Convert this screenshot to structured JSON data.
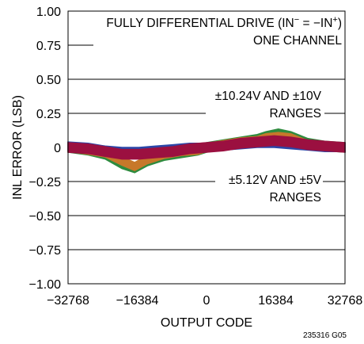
{
  "chart_data": {
    "type": "line",
    "xlabel": "OUTPUT CODE",
    "ylabel": "INL ERROR (LSB)",
    "xlim": [
      -32768,
      32768
    ],
    "ylim": [
      -1.0,
      1.0
    ],
    "x_ticks": [
      -32768,
      -16384,
      0,
      16384,
      32768
    ],
    "x_tick_labels": [
      "−32768",
      "−16384",
      "0",
      "16384",
      "32768"
    ],
    "y_ticks": [
      1.0,
      0.75,
      0.5,
      0.25,
      0,
      -0.25,
      -0.5,
      -0.75,
      -1.0
    ],
    "y_tick_labels": [
      "1.00",
      "0.75",
      "0.50",
      "0.25",
      "0",
      "−0.25",
      "−0.50",
      "−0.75",
      "−1.00"
    ],
    "grid": true,
    "annotations": {
      "condition_line1_a": "FULLY DIFFERENTIAL DRIVE (IN",
      "condition_line1_sup1": "−",
      "condition_line1_b": " = −IN",
      "condition_line1_sup2": "+",
      "condition_line1_c": ")",
      "condition_line2": "ONE CHANNEL",
      "upper_label_line1": "±10.24V AND ±10V",
      "upper_label_line2": "RANGES",
      "lower_label_line1": "±5.12V AND ±5V",
      "lower_label_line2": "RANGES"
    },
    "series": [
      {
        "color": "#2e8b3e",
        "band": 0.035,
        "x": [
          -32768,
          -28000,
          -24000,
          -20000,
          -17000,
          -14000,
          -10000,
          -6000,
          -2000,
          0,
          4000,
          8000,
          12000,
          14000,
          17000,
          20000,
          24000,
          28000,
          32768
        ],
        "y": [
          0.0,
          -0.02,
          -0.05,
          -0.12,
          -0.15,
          -0.1,
          -0.06,
          -0.04,
          -0.02,
          0.0,
          0.02,
          0.04,
          0.06,
          0.08,
          0.1,
          0.08,
          0.03,
          0.01,
          0.0
        ]
      },
      {
        "color": "#c7782a",
        "band": 0.03,
        "x": [
          -32768,
          -28000,
          -24000,
          -20000,
          -17000,
          -14000,
          -10000,
          -6000,
          -2000,
          0,
          4000,
          8000,
          12000,
          14000,
          17000,
          20000,
          24000,
          28000,
          32768
        ],
        "y": [
          0.0,
          -0.02,
          -0.04,
          -0.1,
          -0.14,
          -0.09,
          -0.05,
          -0.03,
          -0.02,
          0.0,
          0.02,
          0.04,
          0.05,
          0.07,
          0.08,
          0.07,
          0.02,
          0.01,
          0.0
        ]
      },
      {
        "color": "#2b46a8",
        "band": 0.03,
        "x": [
          -32768,
          -28000,
          -24000,
          -20000,
          -16000,
          -12000,
          -8000,
          -4000,
          0,
          4000,
          8000,
          12000,
          16000,
          20000,
          24000,
          28000,
          32768
        ],
        "y": [
          0.01,
          0.0,
          -0.02,
          -0.03,
          -0.03,
          -0.02,
          -0.01,
          0.0,
          0.0,
          0.01,
          0.02,
          0.03,
          0.03,
          0.02,
          0.01,
          0.0,
          0.0
        ]
      },
      {
        "color": "#9b1040",
        "band": 0.035,
        "x": [
          -32768,
          -28000,
          -24000,
          -20000,
          -16000,
          -12000,
          -8000,
          -4000,
          0,
          4000,
          8000,
          12000,
          16000,
          20000,
          24000,
          28000,
          32768
        ],
        "y": [
          0.0,
          -0.01,
          -0.03,
          -0.05,
          -0.05,
          -0.04,
          -0.03,
          -0.01,
          0.0,
          0.01,
          0.03,
          0.04,
          0.05,
          0.04,
          0.02,
          0.01,
          0.0
        ]
      }
    ]
  },
  "figure_code": "235316 G05"
}
